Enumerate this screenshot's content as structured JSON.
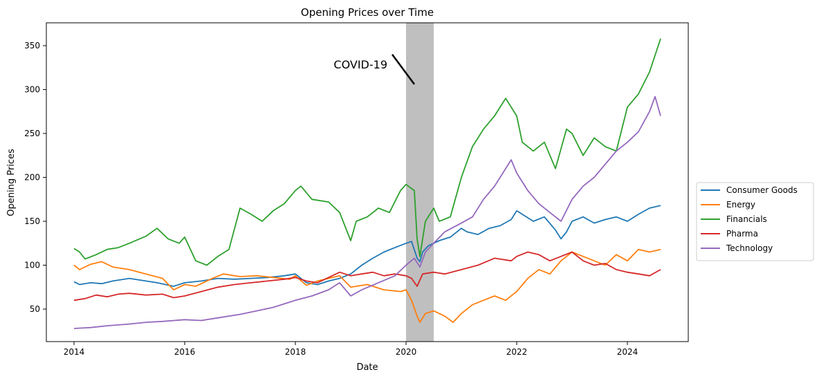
{
  "chart_data": {
    "type": "line",
    "title": "Opening Prices over Time",
    "xlabel": "Date",
    "ylabel": "Opening Prices",
    "xlim": [
      2013.5,
      2025.1
    ],
    "ylim": [
      13,
      376
    ],
    "xticks": [
      {
        "value": 2014,
        "label": "2014"
      },
      {
        "value": 2016,
        "label": "2016"
      },
      {
        "value": 2018,
        "label": "2018"
      },
      {
        "value": 2020,
        "label": "2020"
      },
      {
        "value": 2022,
        "label": "2022"
      },
      {
        "value": 2024,
        "label": "2024"
      }
    ],
    "yticks": [
      {
        "value": 50,
        "label": "50"
      },
      {
        "value": 100,
        "label": "100"
      },
      {
        "value": 150,
        "label": "150"
      },
      {
        "value": 200,
        "label": "200"
      },
      {
        "value": 250,
        "label": "250"
      },
      {
        "value": 300,
        "label": "300"
      },
      {
        "value": 350,
        "label": "350"
      }
    ],
    "grid": false,
    "legend_position": "right",
    "shaded_region": {
      "from": 2020.0,
      "to": 2020.5,
      "color": "#bfbfbf"
    },
    "annotation": {
      "text": "COVID-19",
      "arrow_from": [
        2019.75,
        340
      ],
      "arrow_to": [
        2020.15,
        306
      ]
    },
    "series": [
      {
        "name": "Consumer Goods",
        "color": "#1f77b4",
        "points": [
          [
            2014.0,
            81
          ],
          [
            2014.1,
            78
          ],
          [
            2014.3,
            80
          ],
          [
            2014.5,
            79
          ],
          [
            2014.7,
            82
          ],
          [
            2015.0,
            85
          ],
          [
            2015.2,
            83
          ],
          [
            2015.5,
            80
          ],
          [
            2015.8,
            76
          ],
          [
            2016.0,
            80
          ],
          [
            2016.3,
            82
          ],
          [
            2016.6,
            85
          ],
          [
            2016.9,
            84
          ],
          [
            2017.2,
            85
          ],
          [
            2017.5,
            86
          ],
          [
            2017.8,
            88
          ],
          [
            2018.0,
            90
          ],
          [
            2018.2,
            80
          ],
          [
            2018.4,
            78
          ],
          [
            2018.6,
            82
          ],
          [
            2018.8,
            85
          ],
          [
            2019.0,
            90
          ],
          [
            2019.2,
            100
          ],
          [
            2019.4,
            108
          ],
          [
            2019.6,
            115
          ],
          [
            2019.8,
            120
          ],
          [
            2020.0,
            125
          ],
          [
            2020.1,
            127
          ],
          [
            2020.2,
            108
          ],
          [
            2020.25,
            104
          ],
          [
            2020.3,
            115
          ],
          [
            2020.4,
            122
          ],
          [
            2020.6,
            128
          ],
          [
            2020.8,
            132
          ],
          [
            2021.0,
            142
          ],
          [
            2021.1,
            138
          ],
          [
            2021.3,
            135
          ],
          [
            2021.5,
            142
          ],
          [
            2021.7,
            145
          ],
          [
            2021.9,
            152
          ],
          [
            2022.0,
            162
          ],
          [
            2022.1,
            158
          ],
          [
            2022.3,
            150
          ],
          [
            2022.5,
            155
          ],
          [
            2022.7,
            140
          ],
          [
            2022.8,
            130
          ],
          [
            2022.9,
            138
          ],
          [
            2023.0,
            150
          ],
          [
            2023.2,
            155
          ],
          [
            2023.4,
            148
          ],
          [
            2023.6,
            152
          ],
          [
            2023.8,
            155
          ],
          [
            2024.0,
            150
          ],
          [
            2024.2,
            158
          ],
          [
            2024.4,
            165
          ],
          [
            2024.6,
            168
          ]
        ]
      },
      {
        "name": "Energy",
        "color": "#ff7f0e",
        "points": [
          [
            2014.0,
            100
          ],
          [
            2014.1,
            95
          ],
          [
            2014.3,
            101
          ],
          [
            2014.5,
            104
          ],
          [
            2014.7,
            98
          ],
          [
            2015.0,
            95
          ],
          [
            2015.3,
            90
          ],
          [
            2015.6,
            85
          ],
          [
            2015.8,
            72
          ],
          [
            2016.0,
            78
          ],
          [
            2016.2,
            76
          ],
          [
            2016.5,
            85
          ],
          [
            2016.7,
            90
          ],
          [
            2017.0,
            87
          ],
          [
            2017.3,
            88
          ],
          [
            2017.6,
            86
          ],
          [
            2017.9,
            84
          ],
          [
            2018.0,
            88
          ],
          [
            2018.2,
            77
          ],
          [
            2018.4,
            82
          ],
          [
            2018.6,
            85
          ],
          [
            2018.8,
            88
          ],
          [
            2019.0,
            75
          ],
          [
            2019.3,
            78
          ],
          [
            2019.6,
            72
          ],
          [
            2019.9,
            70
          ],
          [
            2020.0,
            72
          ],
          [
            2020.1,
            60
          ],
          [
            2020.2,
            42
          ],
          [
            2020.25,
            35
          ],
          [
            2020.35,
            45
          ],
          [
            2020.5,
            48
          ],
          [
            2020.7,
            42
          ],
          [
            2020.85,
            35
          ],
          [
            2021.0,
            45
          ],
          [
            2021.2,
            55
          ],
          [
            2021.4,
            60
          ],
          [
            2021.6,
            65
          ],
          [
            2021.8,
            60
          ],
          [
            2022.0,
            70
          ],
          [
            2022.2,
            85
          ],
          [
            2022.4,
            95
          ],
          [
            2022.6,
            90
          ],
          [
            2022.8,
            105
          ],
          [
            2023.0,
            115
          ],
          [
            2023.2,
            110
          ],
          [
            2023.4,
            105
          ],
          [
            2023.6,
            100
          ],
          [
            2023.8,
            112
          ],
          [
            2024.0,
            105
          ],
          [
            2024.2,
            118
          ],
          [
            2024.4,
            115
          ],
          [
            2024.6,
            118
          ]
        ]
      },
      {
        "name": "Financials",
        "color": "#2ca02c",
        "points": [
          [
            2014.0,
            119
          ],
          [
            2014.1,
            115
          ],
          [
            2014.2,
            107
          ],
          [
            2014.4,
            112
          ],
          [
            2014.6,
            118
          ],
          [
            2014.8,
            120
          ],
          [
            2015.0,
            125
          ],
          [
            2015.3,
            133
          ],
          [
            2015.5,
            142
          ],
          [
            2015.7,
            130
          ],
          [
            2015.9,
            125
          ],
          [
            2016.0,
            132
          ],
          [
            2016.2,
            105
          ],
          [
            2016.4,
            100
          ],
          [
            2016.6,
            110
          ],
          [
            2016.8,
            118
          ],
          [
            2017.0,
            165
          ],
          [
            2017.2,
            158
          ],
          [
            2017.4,
            150
          ],
          [
            2017.6,
            162
          ],
          [
            2017.8,
            170
          ],
          [
            2018.0,
            185
          ],
          [
            2018.1,
            190
          ],
          [
            2018.3,
            175
          ],
          [
            2018.6,
            172
          ],
          [
            2018.8,
            160
          ],
          [
            2019.0,
            128
          ],
          [
            2019.1,
            150
          ],
          [
            2019.3,
            155
          ],
          [
            2019.5,
            165
          ],
          [
            2019.7,
            160
          ],
          [
            2019.9,
            185
          ],
          [
            2020.0,
            192
          ],
          [
            2020.15,
            185
          ],
          [
            2020.2,
            130
          ],
          [
            2020.25,
            110
          ],
          [
            2020.35,
            150
          ],
          [
            2020.5,
            165
          ],
          [
            2020.6,
            150
          ],
          [
            2020.8,
            155
          ],
          [
            2021.0,
            200
          ],
          [
            2021.2,
            235
          ],
          [
            2021.4,
            255
          ],
          [
            2021.6,
            270
          ],
          [
            2021.8,
            290
          ],
          [
            2022.0,
            270
          ],
          [
            2022.1,
            240
          ],
          [
            2022.3,
            230
          ],
          [
            2022.5,
            240
          ],
          [
            2022.7,
            210
          ],
          [
            2022.9,
            255
          ],
          [
            2023.0,
            250
          ],
          [
            2023.2,
            225
          ],
          [
            2023.4,
            245
          ],
          [
            2023.6,
            235
          ],
          [
            2023.8,
            230
          ],
          [
            2024.0,
            280
          ],
          [
            2024.2,
            295
          ],
          [
            2024.4,
            320
          ],
          [
            2024.6,
            358
          ]
        ]
      },
      {
        "name": "Pharma",
        "color": "#d62728",
        "points": [
          [
            2014.0,
            60
          ],
          [
            2014.2,
            62
          ],
          [
            2014.4,
            66
          ],
          [
            2014.6,
            64
          ],
          [
            2014.8,
            67
          ],
          [
            2015.0,
            68
          ],
          [
            2015.3,
            66
          ],
          [
            2015.6,
            67
          ],
          [
            2015.8,
            63
          ],
          [
            2016.0,
            65
          ],
          [
            2016.3,
            70
          ],
          [
            2016.6,
            75
          ],
          [
            2016.9,
            78
          ],
          [
            2017.2,
            80
          ],
          [
            2017.5,
            82
          ],
          [
            2017.8,
            84
          ],
          [
            2018.0,
            86
          ],
          [
            2018.2,
            82
          ],
          [
            2018.4,
            80
          ],
          [
            2018.6,
            86
          ],
          [
            2018.8,
            92
          ],
          [
            2019.0,
            88
          ],
          [
            2019.2,
            90
          ],
          [
            2019.4,
            92
          ],
          [
            2019.6,
            88
          ],
          [
            2019.8,
            90
          ],
          [
            2020.0,
            88
          ],
          [
            2020.1,
            85
          ],
          [
            2020.2,
            76
          ],
          [
            2020.3,
            90
          ],
          [
            2020.5,
            92
          ],
          [
            2020.7,
            90
          ],
          [
            2021.0,
            95
          ],
          [
            2021.3,
            100
          ],
          [
            2021.6,
            108
          ],
          [
            2021.9,
            105
          ],
          [
            2022.0,
            110
          ],
          [
            2022.2,
            115
          ],
          [
            2022.4,
            112
          ],
          [
            2022.6,
            105
          ],
          [
            2022.8,
            110
          ],
          [
            2023.0,
            115
          ],
          [
            2023.2,
            105
          ],
          [
            2023.4,
            100
          ],
          [
            2023.6,
            102
          ],
          [
            2023.8,
            95
          ],
          [
            2024.0,
            92
          ],
          [
            2024.2,
            90
          ],
          [
            2024.4,
            88
          ],
          [
            2024.6,
            95
          ]
        ]
      },
      {
        "name": "Technology",
        "color": "#9467bd",
        "points": [
          [
            2014.0,
            28
          ],
          [
            2014.3,
            29
          ],
          [
            2014.6,
            31
          ],
          [
            2015.0,
            33
          ],
          [
            2015.3,
            35
          ],
          [
            2015.6,
            36
          ],
          [
            2016.0,
            38
          ],
          [
            2016.3,
            37
          ],
          [
            2016.6,
            40
          ],
          [
            2017.0,
            44
          ],
          [
            2017.3,
            48
          ],
          [
            2017.6,
            52
          ],
          [
            2017.9,
            58
          ],
          [
            2018.0,
            60
          ],
          [
            2018.3,
            65
          ],
          [
            2018.6,
            72
          ],
          [
            2018.8,
            80
          ],
          [
            2019.0,
            65
          ],
          [
            2019.2,
            72
          ],
          [
            2019.5,
            80
          ],
          [
            2019.8,
            88
          ],
          [
            2020.0,
            100
          ],
          [
            2020.15,
            108
          ],
          [
            2020.25,
            98
          ],
          [
            2020.35,
            115
          ],
          [
            2020.5,
            125
          ],
          [
            2020.7,
            138
          ],
          [
            2021.0,
            148
          ],
          [
            2021.2,
            155
          ],
          [
            2021.4,
            175
          ],
          [
            2021.6,
            190
          ],
          [
            2021.8,
            210
          ],
          [
            2021.9,
            220
          ],
          [
            2022.0,
            205
          ],
          [
            2022.2,
            185
          ],
          [
            2022.4,
            170
          ],
          [
            2022.6,
            160
          ],
          [
            2022.8,
            150
          ],
          [
            2023.0,
            175
          ],
          [
            2023.2,
            190
          ],
          [
            2023.4,
            200
          ],
          [
            2023.6,
            215
          ],
          [
            2023.8,
            230
          ],
          [
            2024.0,
            240
          ],
          [
            2024.2,
            252
          ],
          [
            2024.4,
            275
          ],
          [
            2024.5,
            292
          ],
          [
            2024.6,
            270
          ]
        ]
      }
    ]
  }
}
